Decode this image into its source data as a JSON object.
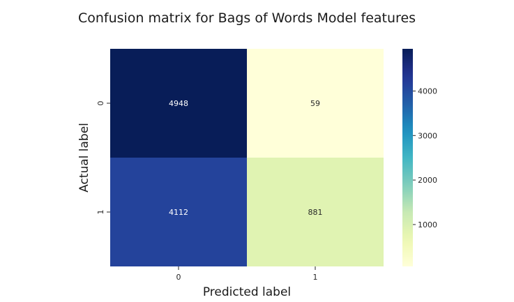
{
  "chart_data": {
    "type": "heatmap",
    "title": "Confusion matrix for Bags of Words Model features",
    "xlabel": "Predicted label",
    "ylabel": "Actual label",
    "x_categories": [
      "0",
      "1"
    ],
    "y_categories": [
      "0",
      "1"
    ],
    "values": [
      [
        4948,
        59
      ],
      [
        4112,
        881
      ]
    ],
    "colormap": "YlGnBu",
    "colorbar": {
      "range": [
        59,
        4948
      ],
      "ticks": [
        1000,
        2000,
        3000,
        4000
      ]
    },
    "grid": false,
    "legend": "colorbar-right"
  }
}
